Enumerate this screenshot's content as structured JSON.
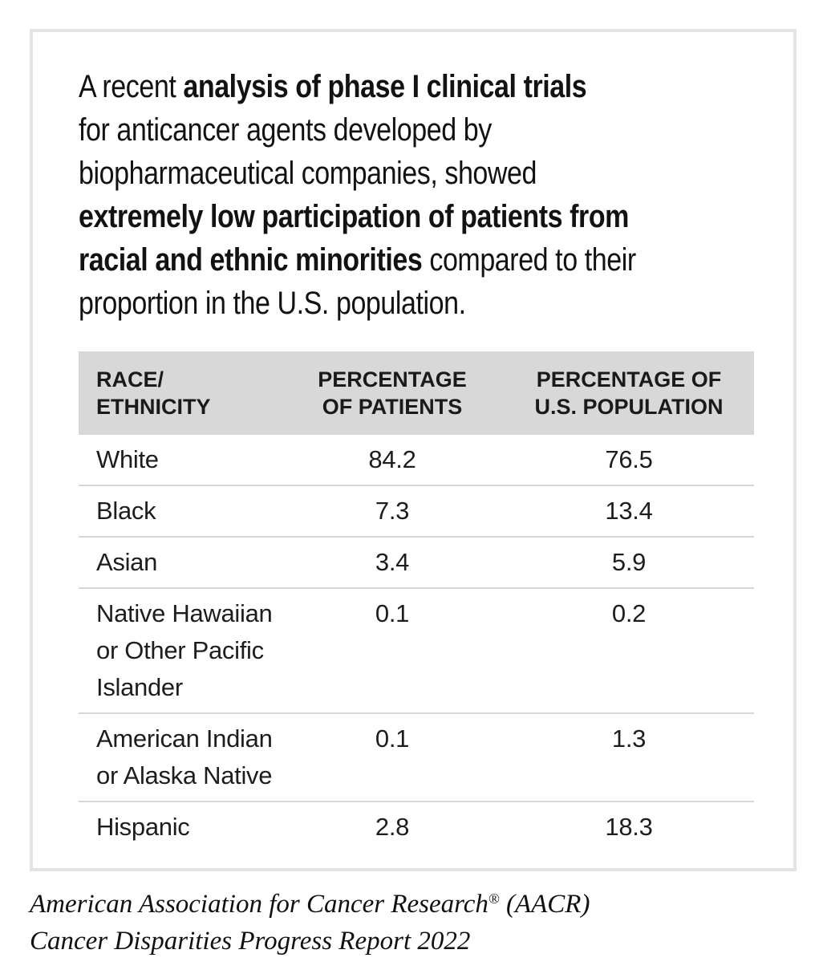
{
  "card": {
    "intro": {
      "segments": [
        {
          "text": "A recent ",
          "bold": false
        },
        {
          "text": "analysis of phase I clinical trials",
          "bold": true
        },
        {
          "text": "\nfor anticancer agents developed by\nbiopharmaceutical companies, showed\n",
          "bold": false
        },
        {
          "text": "extremely low participation of patients from\nracial and ethnic minorities",
          "bold": true
        },
        {
          "text": " compared to their\nproportion in the U.S. population.",
          "bold": false
        }
      ]
    },
    "table": {
      "headers": [
        "RACE/\nETHNICITY",
        "PERCENTAGE\nOF PATIENTS",
        "PERCENTAGE OF\nU.S. POPULATION"
      ],
      "rows": [
        {
          "race": "White",
          "patients": "84.2",
          "population": "76.5"
        },
        {
          "race": "Black",
          "patients": "7.3",
          "population": "13.4"
        },
        {
          "race": "Asian",
          "patients": "3.4",
          "population": "5.9"
        },
        {
          "race": "Native Hawaiian\nor Other Pacific\nIslander",
          "patients": "0.1",
          "population": "0.2"
        },
        {
          "race": "American Indian\nor Alaska Native",
          "patients": "0.1",
          "population": "1.3"
        },
        {
          "race": "Hispanic",
          "patients": "2.8",
          "population": "18.3"
        }
      ]
    }
  },
  "footer": {
    "line1_name": "American Association for Cancer Research",
    "line1_reg": "®",
    "line1_suffix": " (AACR)",
    "line2": "Cancer Disparities Progress Report 2022"
  },
  "colors": {
    "card_border": "#e3e3e3",
    "header_background": "#d8d8d8",
    "row_divider": "#d7d7d7",
    "text": "#121212",
    "background": "#ffffff"
  },
  "chart_data": {
    "type": "table",
    "columns": [
      "RACE/ETHNICITY",
      "PERCENTAGE OF PATIENTS",
      "PERCENTAGE OF U.S. POPULATION"
    ],
    "rows": [
      [
        "White",
        84.2,
        76.5
      ],
      [
        "Black",
        7.3,
        13.4
      ],
      [
        "Asian",
        3.4,
        5.9
      ],
      [
        "Native Hawaiian or Other Pacific Islander",
        0.1,
        0.2
      ],
      [
        "American Indian or Alaska Native",
        0.1,
        1.3
      ],
      [
        "Hispanic",
        2.8,
        18.3
      ]
    ],
    "title": "A recent analysis of phase I clinical trials for anticancer agents developed by biopharmaceutical companies, showed extremely low participation of patients from racial and ethnic minorities compared to their proportion in the U.S. population.",
    "source": "American Association for Cancer Research® (AACR) Cancer Disparities Progress Report 2022"
  }
}
